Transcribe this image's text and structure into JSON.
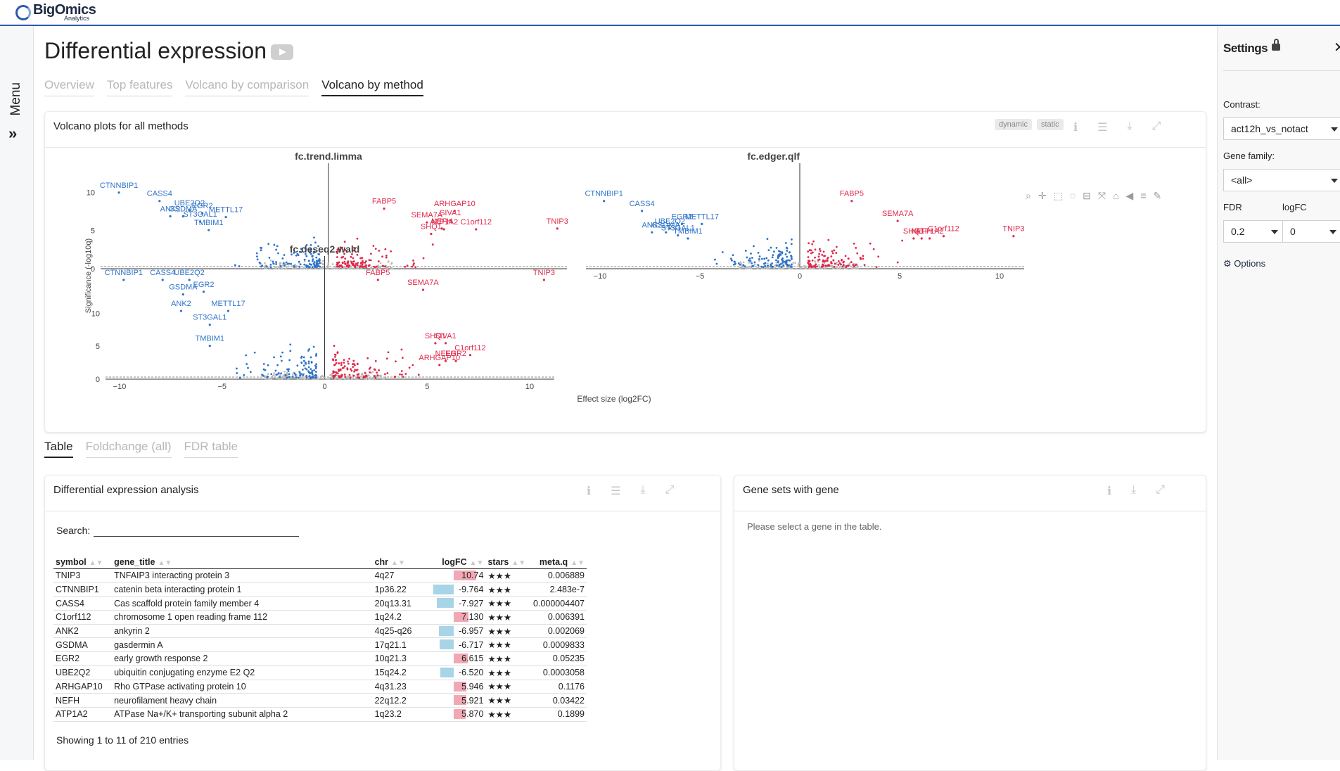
{
  "brand": {
    "name": "BigOmics",
    "sub": "Analytics"
  },
  "menu": {
    "label": "Menu",
    "chevron": "»"
  },
  "page": {
    "title": "Differential expression",
    "tabs": [
      {
        "label": "Overview"
      },
      {
        "label": "Top features"
      },
      {
        "label": "Volcano by comparison"
      },
      {
        "label": "Volcano by method"
      }
    ]
  },
  "volcano_card": {
    "title": "Volcano plots for all methods",
    "badge_dynamic": "dynamic",
    "badge_static": "static",
    "icons": [
      "info-icon",
      "menu-icon",
      "download-icon",
      "expand-icon"
    ]
  },
  "chart_data": [
    {
      "type": "scatter",
      "title": "fc.trend.limma",
      "ylabel": "Significance (-log10q)",
      "xlim": [
        -12,
        11.5
      ],
      "ylim": [
        0,
        11.5
      ],
      "x_ticks": [
        "−10",
        "−5",
        "0",
        "5",
        "10"
      ],
      "y_ticks": [
        "0",
        "5",
        "10"
      ],
      "labels": [
        {
          "text": "CTNNBIP1",
          "x": -9.8,
          "y": 10.6,
          "color": "blue"
        },
        {
          "text": "CASS4",
          "x": -7.9,
          "y": 9.5,
          "color": "blue"
        },
        {
          "text": "UBE2Q2",
          "x": -6.5,
          "y": 8.3,
          "color": "blue"
        },
        {
          "text": "ANK2",
          "x": -7.4,
          "y": 7.5,
          "color": "blue"
        },
        {
          "text": "GSDMA",
          "x": -6.8,
          "y": 7.5,
          "color": "blue"
        },
        {
          "text": "EGR2",
          "x": -5.9,
          "y": 7.9,
          "color": "blue"
        },
        {
          "text": "METTL17",
          "x": -4.8,
          "y": 7.4,
          "color": "blue"
        },
        {
          "text": "ST3GAL1",
          "x": -6.0,
          "y": 6.8,
          "color": "blue"
        },
        {
          "text": "TMBIM1",
          "x": -5.6,
          "y": 5.7,
          "color": "blue"
        },
        {
          "text": "FABP5",
          "x": 2.6,
          "y": 8.5,
          "color": "red"
        },
        {
          "text": "ARHGAP10",
          "x": 5.9,
          "y": 8.2,
          "color": "red"
        },
        {
          "text": "SIVA1",
          "x": 5.7,
          "y": 7.0,
          "color": "red"
        },
        {
          "text": "SEMA7A",
          "x": 4.6,
          "y": 6.7,
          "color": "red"
        },
        {
          "text": "NEFH",
          "x": 5.3,
          "y": 5.9,
          "color": "red"
        },
        {
          "text": "C1orf112",
          "x": 6.9,
          "y": 5.8,
          "color": "red"
        },
        {
          "text": "SHQ1",
          "x": 4.8,
          "y": 5.2,
          "color": "red"
        },
        {
          "text": "ATP1A2",
          "x": 5.4,
          "y": 5.8,
          "color": "red"
        },
        {
          "text": "TNIP3",
          "x": 10.7,
          "y": 5.9,
          "color": "red"
        }
      ]
    },
    {
      "type": "scatter",
      "title": "fc.edger.qlf",
      "xlim": [
        -12,
        11.5
      ],
      "ylim": [
        0,
        11.5
      ],
      "x_ticks": [
        "−10",
        "−5",
        "0",
        "5",
        "10"
      ],
      "labels": [
        {
          "text": "CTNNBIP1",
          "x": -9.8,
          "y": 9.5,
          "color": "blue"
        },
        {
          "text": "CASS4",
          "x": -7.9,
          "y": 8.2,
          "color": "blue"
        },
        {
          "text": "UBE2Q2",
          "x": -6.5,
          "y": 5.9,
          "color": "blue"
        },
        {
          "text": "ANK2",
          "x": -7.4,
          "y": 5.4,
          "color": "blue"
        },
        {
          "text": "GSDMA",
          "x": -6.7,
          "y": 5.4,
          "color": "blue"
        },
        {
          "text": "EGR2",
          "x": -5.9,
          "y": 6.5,
          "color": "blue"
        },
        {
          "text": "METTL17",
          "x": -4.9,
          "y": 6.5,
          "color": "blue"
        },
        {
          "text": "ST3GAL1",
          "x": -6.1,
          "y": 5.0,
          "color": "blue"
        },
        {
          "text": "TMBIM1",
          "x": -5.6,
          "y": 4.6,
          "color": "blue"
        },
        {
          "text": "FABP5",
          "x": 2.6,
          "y": 9.5,
          "color": "red"
        },
        {
          "text": "SEMA7A",
          "x": 4.9,
          "y": 6.9,
          "color": "red"
        },
        {
          "text": "SHQ1",
          "x": 5.7,
          "y": 4.6,
          "color": "red"
        },
        {
          "text": "NEFH",
          "x": 6.1,
          "y": 4.6,
          "color": "red"
        },
        {
          "text": "ATP1A2",
          "x": 6.5,
          "y": 4.6,
          "color": "red"
        },
        {
          "text": "C1orf112",
          "x": 7.2,
          "y": 4.9,
          "color": "red"
        },
        {
          "text": "TNIP3",
          "x": 10.7,
          "y": 4.9,
          "color": "red"
        }
      ]
    },
    {
      "type": "scatter",
      "title": "fc.deseq2.wald",
      "xlabel": "Effect size (log2FC)",
      "xlim": [
        -12,
        11.5
      ],
      "ylim": [
        0,
        16
      ],
      "x_ticks": [
        "−10",
        "−5",
        "0",
        "5",
        "10"
      ],
      "y_ticks": [
        "0",
        "5",
        "10"
      ],
      "labels": [
        {
          "text": "CTNNBIP1",
          "x": -9.8,
          "y": 15.8,
          "color": "blue"
        },
        {
          "text": "CASS4",
          "x": -7.9,
          "y": 15.8,
          "color": "blue"
        },
        {
          "text": "UBE2Q2",
          "x": -6.6,
          "y": 15.8,
          "color": "blue"
        },
        {
          "text": "GSDMA",
          "x": -6.9,
          "y": 13.6,
          "color": "blue"
        },
        {
          "text": "EGR2",
          "x": -5.9,
          "y": 14.0,
          "color": "blue"
        },
        {
          "text": "ANK2",
          "x": -7.0,
          "y": 11.1,
          "color": "blue"
        },
        {
          "text": "METTL17",
          "x": -4.7,
          "y": 11.1,
          "color": "blue"
        },
        {
          "text": "ST3GAL1",
          "x": -5.6,
          "y": 9.0,
          "color": "blue"
        },
        {
          "text": "TMBIM1",
          "x": -5.6,
          "y": 5.8,
          "color": "blue"
        },
        {
          "text": "FABP5",
          "x": 2.6,
          "y": 15.8,
          "color": "red"
        },
        {
          "text": "SEMA7A",
          "x": 4.8,
          "y": 14.3,
          "color": "red"
        },
        {
          "text": "TNIP3",
          "x": 10.7,
          "y": 15.8,
          "color": "red"
        },
        {
          "text": "SHQ1",
          "x": 5.4,
          "y": 6.2,
          "color": "red"
        },
        {
          "text": "SIVA1",
          "x": 5.9,
          "y": 6.2,
          "color": "red"
        },
        {
          "text": "C1orf112",
          "x": 7.1,
          "y": 4.4,
          "color": "red"
        },
        {
          "text": "NEFH",
          "x": 5.9,
          "y": 3.5,
          "color": "red"
        },
        {
          "text": "EGR2",
          "x": 6.4,
          "y": 3.5,
          "color": "red"
        },
        {
          "text": "ARHGAP10",
          "x": 5.6,
          "y": 2.9,
          "color": "red"
        }
      ]
    }
  ],
  "lower_tabs": [
    {
      "label": "Table"
    },
    {
      "label": "Foldchange (all)"
    },
    {
      "label": "FDR table"
    }
  ],
  "de_card": {
    "title": "Differential expression analysis",
    "search_label": "Search:",
    "search_value": "",
    "columns": [
      "symbol",
      "gene_title",
      "chr",
      "logFC",
      "stars",
      "meta.q"
    ],
    "rows": [
      {
        "symbol": "TNIP3",
        "gene_title": "TNFAIP3 interacting protein 3",
        "chr": "4q27",
        "logFC": "10.74",
        "fc": 10.74,
        "stars": "★★★",
        "meta_q": "0.006889"
      },
      {
        "symbol": "CTNNBIP1",
        "gene_title": "catenin beta interacting protein 1",
        "chr": "1p36.22",
        "logFC": "-9.764",
        "fc": -9.764,
        "stars": "★★★",
        "meta_q": "2.483e-7"
      },
      {
        "symbol": "CASS4",
        "gene_title": "Cas scaffold protein family member 4",
        "chr": "20q13.31",
        "logFC": "-7.927",
        "fc": -7.927,
        "stars": "★★★",
        "meta_q": "0.000004407"
      },
      {
        "symbol": "C1orf112",
        "gene_title": "chromosome 1 open reading frame 112",
        "chr": "1q24.2",
        "logFC": "7.130",
        "fc": 7.13,
        "stars": "★★★",
        "meta_q": "0.006391"
      },
      {
        "symbol": "ANK2",
        "gene_title": "ankyrin 2",
        "chr": "4q25-q26",
        "logFC": "-6.957",
        "fc": -6.957,
        "stars": "★★★",
        "meta_q": "0.002069"
      },
      {
        "symbol": "GSDMA",
        "gene_title": "gasdermin A",
        "chr": "17q21.1",
        "logFC": "-6.717",
        "fc": -6.717,
        "stars": "★★★",
        "meta_q": "0.0009833"
      },
      {
        "symbol": "EGR2",
        "gene_title": "early growth response 2",
        "chr": "10q21.3",
        "logFC": "6.615",
        "fc": 6.615,
        "stars": "★★★",
        "meta_q": "0.05235"
      },
      {
        "symbol": "UBE2Q2",
        "gene_title": "ubiquitin conjugating enzyme E2 Q2",
        "chr": "15q24.2",
        "logFC": "-6.520",
        "fc": -6.52,
        "stars": "★★★",
        "meta_q": "0.0003058"
      },
      {
        "symbol": "ARHGAP10",
        "gene_title": "Rho GTPase activating protein 10",
        "chr": "4q31.23",
        "logFC": "5.946",
        "fc": 5.946,
        "stars": "★★★",
        "meta_q": "0.1176"
      },
      {
        "symbol": "NEFH",
        "gene_title": "neurofilament heavy chain",
        "chr": "22q12.2",
        "logFC": "5.921",
        "fc": 5.921,
        "stars": "★★★",
        "meta_q": "0.03422"
      },
      {
        "symbol": "ATP1A2",
        "gene_title": "ATPase Na+/K+ transporting subunit alpha 2",
        "chr": "1q23.2",
        "logFC": "5.870",
        "fc": 5.87,
        "stars": "★★★",
        "meta_q": "0.1899"
      }
    ],
    "showing": "Showing 1 to 11 of 210 entries"
  },
  "geneset_card": {
    "title": "Gene sets with gene",
    "message": "Please select a gene in the table."
  },
  "settings": {
    "title": "Settings",
    "contrast_label": "Contrast:",
    "contrast_value": "act12h_vs_notact",
    "gene_family_label": "Gene family:",
    "gene_family_value": "<all>",
    "fdr_label": "FDR",
    "fdr_value": "0.2",
    "logfc_label": "logFC",
    "logfc_value": "0",
    "options_label": "Options"
  },
  "colors": {
    "up": "#e0284a",
    "down": "#2e73c9",
    "ns": "#b9b9b9",
    "accent": "#2a5caa"
  }
}
